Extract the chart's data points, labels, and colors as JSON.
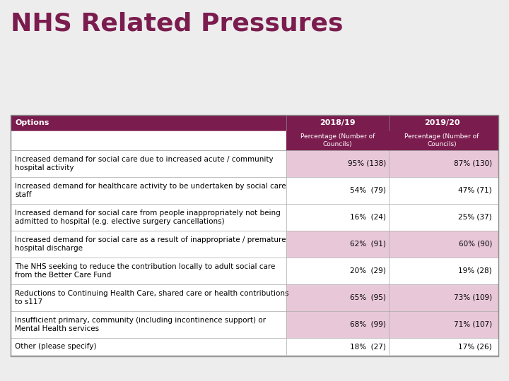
{
  "title": "NHS Related Pressures",
  "title_color": "#7B1C4E",
  "bg_color": "#EDEDED",
  "table_bg": "#FFFFFF",
  "header_bg": "#7B1C4E",
  "header_text_color": "#FFFFFF",
  "subheader_bg": "#7B1C4E",
  "col_header": "Options",
  "col_2018": "2018/19",
  "col_2019": "2019/20",
  "col_sub": "Percentage (Number of\nCouncils)",
  "rows": [
    {
      "option": "Increased demand for social care due to increased acute / community\nhospital activity",
      "val_2018": "95% (138)",
      "val_2019": "87% (130)",
      "highlight": true
    },
    {
      "option": "Increased demand for healthcare activity to be undertaken by social care\nstaff",
      "val_2018": "54%  (79)",
      "val_2019": "47% (71)",
      "highlight": false
    },
    {
      "option": "Increased demand for social care from people inappropriately not being\nadmitted to hospital (e.g. elective surgery cancellations)",
      "val_2018": "16%  (24)",
      "val_2019": "25% (37)",
      "highlight": false
    },
    {
      "option": "Increased demand for social care as a result of inappropriate / premature\nhospital discharge",
      "val_2018": "62%  (91)",
      "val_2019": "60% (90)",
      "highlight": true
    },
    {
      "option": "The NHS seeking to reduce the contribution locally to adult social care\nfrom the Better Care Fund",
      "val_2018": "20%  (29)",
      "val_2019": "19% (28)",
      "highlight": false
    },
    {
      "option": "Reductions to Continuing Health Care, shared care or health contributions\nto s117",
      "val_2018": "65%  (95)",
      "val_2019": "73% (109)",
      "highlight": true
    },
    {
      "option": "Insufficient primary, community (including incontinence support) or\nMental Health services",
      "val_2018": "68%  (99)",
      "val_2019": "71% (107)",
      "highlight": true
    },
    {
      "option": "Other (please specify)",
      "val_2018": "18%  (27)",
      "val_2019": "17% (26)",
      "highlight": false
    }
  ],
  "highlight_color": "#E8C8D8",
  "row_border_color": "#AAAAAA",
  "font_size_title": 26,
  "font_size_header": 8,
  "font_size_row": 7.5
}
